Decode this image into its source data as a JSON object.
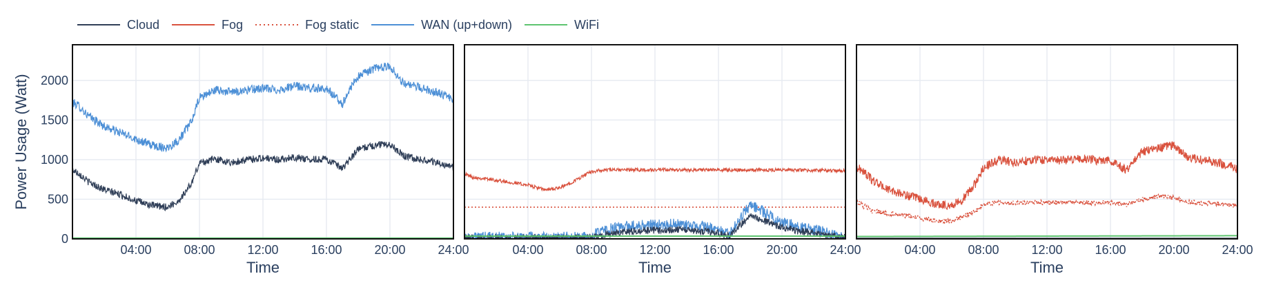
{
  "legend": {
    "items": [
      {
        "key": "cloud",
        "label": "Cloud",
        "color": "#2f3e57",
        "dash": "solid"
      },
      {
        "key": "fog",
        "label": "Fog",
        "color": "#d9513d",
        "dash": "solid"
      },
      {
        "key": "fog_static",
        "label": "Fog static",
        "color": "#d9513d",
        "dash": "dot"
      },
      {
        "key": "wan",
        "label": "WAN (up+down)",
        "color": "#4c8fd6",
        "dash": "solid"
      },
      {
        "key": "wifi",
        "label": "WiFi",
        "color": "#5dc46f",
        "dash": "solid"
      }
    ]
  },
  "chart_data": [
    {
      "type": "line",
      "xlabel": "Time",
      "ylabel": "Power Usage (Watt)",
      "xlim": [
        0,
        24
      ],
      "ylim": [
        0,
        2450
      ],
      "xticks": [
        "04:00",
        "08:00",
        "12:00",
        "16:00",
        "20:00",
        "24:00"
      ],
      "yticks": [
        0,
        500,
        1000,
        1500,
        2000
      ],
      "grid": true,
      "legend_position": "top",
      "series": [
        {
          "name": "WAN (up+down)",
          "color": "#4c8fd6",
          "noise": 55,
          "x": [
            0,
            0.4,
            1,
            2,
            3,
            4,
            5,
            6,
            6.7,
            7.5,
            8,
            9,
            10,
            11,
            12,
            13,
            14,
            15,
            16,
            17,
            17.5,
            18,
            19,
            20,
            20.7,
            21,
            22,
            23,
            24
          ],
          "y": [
            1720,
            1680,
            1550,
            1420,
            1340,
            1260,
            1180,
            1150,
            1250,
            1480,
            1780,
            1880,
            1850,
            1880,
            1900,
            1880,
            1930,
            1900,
            1900,
            1700,
            1900,
            2050,
            2150,
            2180,
            2000,
            1950,
            1900,
            1850,
            1750
          ]
        },
        {
          "name": "Cloud",
          "color": "#2f3e57",
          "noise": 45,
          "x": [
            0,
            0.4,
            1,
            2,
            3,
            4,
            5,
            6,
            6.7,
            7.5,
            8,
            9,
            10,
            11,
            12,
            13,
            14,
            15,
            16,
            17,
            17.5,
            18,
            19,
            20,
            20.7,
            21,
            22,
            23,
            24
          ],
          "y": [
            870,
            830,
            720,
            620,
            560,
            480,
            420,
            400,
            480,
            700,
            960,
            1010,
            960,
            1000,
            1020,
            1000,
            1030,
            1000,
            1010,
            880,
            1010,
            1130,
            1180,
            1200,
            1080,
            1040,
            1000,
            960,
            900
          ]
        },
        {
          "name": "Fog",
          "color": "#d9513d",
          "noise": 0,
          "x": [
            0,
            24
          ],
          "y": [
            5,
            5
          ]
        },
        {
          "name": "WiFi",
          "color": "#5dc46f",
          "noise": 0,
          "x": [
            0,
            24
          ],
          "y": [
            10,
            10
          ]
        }
      ]
    },
    {
      "type": "line",
      "xlabel": "Time",
      "ylabel": "",
      "xlim": [
        0,
        24
      ],
      "ylim": [
        0,
        2450
      ],
      "xticks": [
        "04:00",
        "08:00",
        "12:00",
        "16:00",
        "20:00",
        "24:00"
      ],
      "yticks": [],
      "grid": true,
      "series": [
        {
          "name": "Fog",
          "color": "#d9513d",
          "noise": 22,
          "x": [
            0,
            0.5,
            2,
            4,
            5,
            6,
            7,
            8,
            9,
            12,
            16,
            20,
            24
          ],
          "y": [
            820,
            780,
            740,
            680,
            620,
            640,
            740,
            850,
            870,
            870,
            870,
            870,
            860
          ]
        },
        {
          "name": "Fog static",
          "color": "#d9513d",
          "noise": 0,
          "dash": "dot",
          "x": [
            0,
            24
          ],
          "y": [
            400,
            400
          ]
        },
        {
          "name": "WAN (up+down)",
          "color": "#4c8fd6",
          "noise": 70,
          "x": [
            0,
            7.7,
            8.3,
            9,
            10,
            11,
            12,
            13,
            14,
            15,
            16,
            16.7,
            17.5,
            18,
            18.5,
            19,
            19.5,
            20,
            21,
            22,
            23,
            24
          ],
          "y": [
            20,
            20,
            60,
            120,
            150,
            170,
            180,
            190,
            170,
            160,
            100,
            60,
            300,
            420,
            380,
            330,
            260,
            220,
            150,
            120,
            70,
            30
          ]
        },
        {
          "name": "Cloud",
          "color": "#2f3e57",
          "noise": 45,
          "x": [
            0,
            7.7,
            8.3,
            9,
            10,
            11,
            12,
            13,
            14,
            15,
            16,
            16.7,
            17.5,
            18,
            18.5,
            19,
            19.5,
            20,
            21,
            22,
            23,
            24
          ],
          "y": [
            10,
            10,
            30,
            60,
            90,
            100,
            110,
            120,
            110,
            100,
            70,
            30,
            200,
            280,
            260,
            220,
            180,
            150,
            100,
            80,
            40,
            15
          ]
        },
        {
          "name": "WiFi",
          "color": "#5dc46f",
          "noise": 0,
          "x": [
            0,
            24
          ],
          "y": [
            35,
            35
          ]
        }
      ]
    },
    {
      "type": "line",
      "xlabel": "Time",
      "ylabel": "",
      "xlim": [
        0,
        24
      ],
      "ylim": [
        0,
        2450
      ],
      "xticks": [
        "04:00",
        "08:00",
        "12:00",
        "16:00",
        "20:00",
        "24:00"
      ],
      "yticks": [],
      "grid": true,
      "series": [
        {
          "name": "Fog",
          "color": "#d9513d",
          "noise": 55,
          "x": [
            0,
            0.4,
            1,
            2,
            3,
            4,
            5,
            6,
            6.7,
            7.5,
            8,
            9,
            10,
            11,
            12,
            13,
            14,
            15,
            16,
            17,
            17.5,
            18,
            19,
            20,
            20.7,
            21,
            22,
            23,
            24
          ],
          "y": [
            900,
            860,
            740,
            620,
            560,
            500,
            440,
            420,
            500,
            700,
            900,
            1000,
            960,
            1000,
            1000,
            990,
            1020,
            990,
            1000,
            860,
            1000,
            1100,
            1150,
            1180,
            1060,
            1020,
            990,
            950,
            880
          ]
        },
        {
          "name": "Fog static",
          "color": "#d9513d",
          "noise": 30,
          "dash": "dot",
          "x": [
            0,
            0.4,
            1,
            2,
            3,
            4,
            5,
            6,
            6.7,
            7.5,
            8,
            9,
            10,
            11,
            12,
            13,
            14,
            15,
            16,
            17,
            17.5,
            18,
            19,
            20,
            20.7,
            21,
            22,
            23,
            24
          ],
          "y": [
            480,
            420,
            350,
            320,
            300,
            260,
            230,
            220,
            280,
            350,
            440,
            460,
            450,
            460,
            460,
            455,
            460,
            455,
            460,
            430,
            470,
            500,
            540,
            520,
            470,
            460,
            450,
            440,
            420
          ]
        },
        {
          "name": "WiFi",
          "color": "#5dc46f",
          "noise": 0,
          "x": [
            0,
            24
          ],
          "y": [
            30,
            40
          ]
        },
        {
          "name": "Cloud",
          "color": "#2f3e57",
          "noise": 0,
          "x": [
            0,
            24
          ],
          "y": [
            5,
            5
          ]
        }
      ]
    }
  ]
}
